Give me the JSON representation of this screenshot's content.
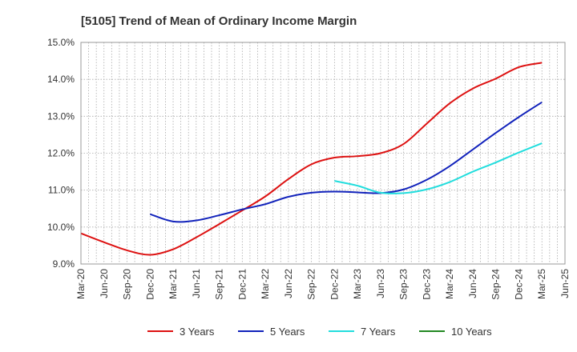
{
  "chart_data": {
    "type": "line",
    "title": "[5105]  Trend of Mean of Ordinary Income Margin",
    "xlabel": "",
    "ylabel": "",
    "ylim": [
      9.0,
      15.0
    ],
    "y_ticks": [
      "9.0%",
      "10.0%",
      "11.0%",
      "12.0%",
      "13.0%",
      "14.0%",
      "15.0%"
    ],
    "x_ticks": [
      "Mar-20",
      "Jun-20",
      "Sep-20",
      "Dec-20",
      "Mar-21",
      "Jun-21",
      "Sep-21",
      "Dec-21",
      "Mar-22",
      "Jun-22",
      "Sep-22",
      "Dec-22",
      "Mar-23",
      "Jun-23",
      "Sep-23",
      "Dec-23",
      "Mar-24",
      "Jun-24",
      "Sep-24",
      "Dec-24",
      "Mar-25",
      "Jun-25"
    ],
    "grid": true,
    "legend_position": "bottom",
    "series": [
      {
        "name": "3 Years",
        "color": "#dd1111",
        "x": [
          "Mar-20",
          "Jun-20",
          "Sep-20",
          "Dec-20",
          "Mar-21",
          "Jun-21",
          "Sep-21",
          "Dec-21",
          "Mar-22",
          "Jun-22",
          "Sep-22",
          "Dec-22",
          "Mar-23",
          "Jun-23",
          "Sep-23",
          "Dec-23",
          "Mar-24",
          "Jun-24",
          "Sep-24",
          "Dec-24",
          "Mar-25"
        ],
        "values": [
          9.83,
          9.59,
          9.37,
          9.25,
          9.4,
          9.72,
          10.08,
          10.45,
          10.83,
          11.3,
          11.7,
          11.88,
          11.92,
          12.0,
          12.25,
          12.8,
          13.35,
          13.75,
          14.02,
          14.33,
          14.45
        ]
      },
      {
        "name": "5 Years",
        "color": "#1122bb",
        "x": [
          "Dec-20",
          "Mar-21",
          "Jun-21",
          "Sep-21",
          "Dec-21",
          "Mar-22",
          "Jun-22",
          "Sep-22",
          "Dec-22",
          "Mar-23",
          "Jun-23",
          "Sep-23",
          "Dec-23",
          "Mar-24",
          "Jun-24",
          "Sep-24",
          "Dec-24",
          "Mar-25"
        ],
        "values": [
          10.35,
          10.15,
          10.18,
          10.32,
          10.48,
          10.62,
          10.82,
          10.93,
          10.96,
          10.94,
          10.92,
          11.02,
          11.28,
          11.65,
          12.1,
          12.55,
          12.98,
          13.38
        ]
      },
      {
        "name": "7 Years",
        "color": "#22dddd",
        "x": [
          "Dec-22",
          "Mar-23",
          "Jun-23",
          "Sep-23",
          "Dec-23",
          "Mar-24",
          "Jun-24",
          "Sep-24",
          "Dec-24",
          "Mar-25"
        ],
        "values": [
          11.25,
          11.12,
          10.93,
          10.92,
          11.02,
          11.22,
          11.5,
          11.75,
          12.02,
          12.27
        ]
      },
      {
        "name": "10 Years",
        "color": "#228822",
        "x": [],
        "values": []
      }
    ]
  }
}
